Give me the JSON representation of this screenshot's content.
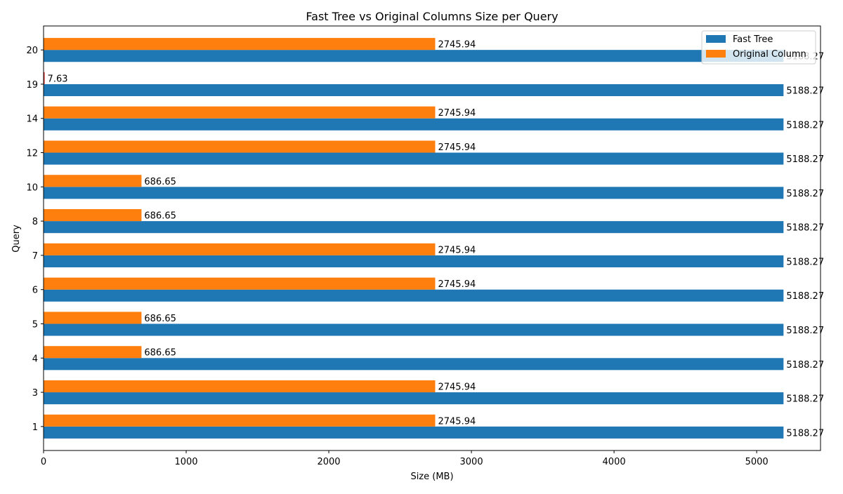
{
  "chart_data": {
    "type": "bar",
    "orientation": "horizontal",
    "title": "Fast Tree vs Original Columns Size per Query",
    "xlabel": "Size (MB)",
    "ylabel": "Query",
    "categories": [
      "1",
      "3",
      "4",
      "5",
      "6",
      "7",
      "8",
      "10",
      "12",
      "14",
      "19",
      "20"
    ],
    "series": [
      {
        "name": "Fast Tree",
        "color": "#1f77b4",
        "values": [
          5188.27,
          5188.27,
          5188.27,
          5188.27,
          5188.27,
          5188.27,
          5188.27,
          5188.27,
          5188.27,
          5188.27,
          5188.27,
          5188.27
        ]
      },
      {
        "name": "Original Column",
        "color": "#ff7f0e",
        "values": [
          2745.94,
          2745.94,
          686.65,
          686.65,
          2745.94,
          2745.94,
          686.65,
          686.65,
          2745.94,
          2745.94,
          7.63,
          2745.94
        ]
      }
    ],
    "highlight_color": "#d62728",
    "xlim": [
      0,
      5447.68
    ],
    "xticks": [
      0,
      1000,
      2000,
      3000,
      4000,
      5000
    ],
    "grid": false,
    "legend_position": "top-right"
  }
}
